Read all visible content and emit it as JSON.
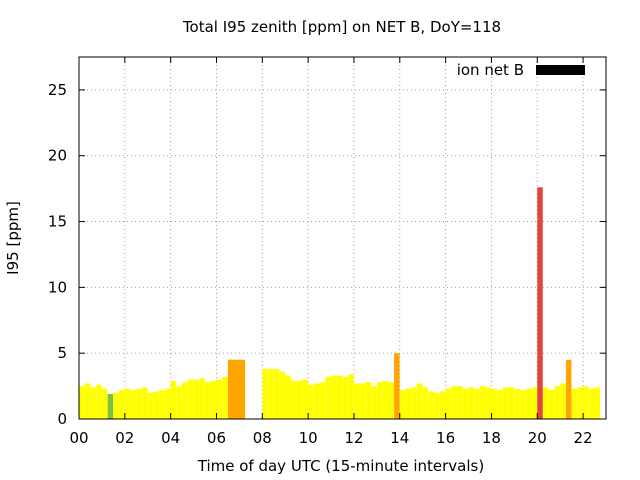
{
  "chart_data": {
    "type": "bar",
    "title": "Total I95 zenith [ppm] on NET B, DoY=118",
    "xlabel": "Time of day UTC (15-minute intervals)",
    "ylabel": "I95 [ppm]",
    "xlim": [
      0,
      23
    ],
    "ylim": [
      0,
      27.5
    ],
    "x_ticks": [
      0,
      2,
      4,
      6,
      8,
      10,
      12,
      14,
      16,
      18,
      20,
      22
    ],
    "x_tick_labels": [
      "00",
      "02",
      "04",
      "06",
      "08",
      "10",
      "12",
      "14",
      "16",
      "18",
      "20",
      "22"
    ],
    "y_ticks": [
      0,
      5,
      10,
      15,
      20,
      25
    ],
    "y_tick_labels": [
      "0",
      "5",
      "10",
      "15",
      "20",
      "25"
    ],
    "grid": true,
    "legend": {
      "label": "ion net B",
      "color": "#000000",
      "placement": "top-right"
    },
    "colors": {
      "low": "#ffff00",
      "green": "#80c040",
      "orange": "#ffa500",
      "red": "#e0463c"
    },
    "series": [
      {
        "name": "ion net B",
        "bar_width_hours": 0.25,
        "start_hours": [
          0.0,
          0.25,
          0.5,
          0.75,
          1.0,
          1.25,
          1.5,
          1.75,
          2.0,
          2.25,
          2.5,
          2.75,
          3.0,
          3.25,
          3.5,
          3.75,
          4.0,
          4.25,
          4.5,
          4.75,
          5.0,
          5.25,
          5.5,
          5.75,
          6.0,
          6.25,
          6.5,
          7.75,
          8.0,
          8.25,
          8.5,
          8.75,
          9.0,
          9.25,
          9.5,
          9.75,
          10.0,
          10.25,
          10.5,
          10.75,
          11.0,
          11.25,
          11.5,
          11.75,
          12.0,
          12.25,
          12.5,
          12.75,
          13.0,
          13.25,
          13.5,
          13.75,
          14.0,
          14.25,
          14.5,
          14.75,
          15.0,
          15.25,
          15.5,
          15.75,
          16.0,
          16.25,
          16.5,
          16.75,
          17.0,
          17.25,
          17.5,
          17.75,
          18.0,
          18.25,
          18.5,
          18.75,
          19.0,
          19.25,
          19.5,
          19.75,
          20.0,
          20.25,
          20.5,
          20.75,
          21.0,
          21.25,
          21.5,
          21.75,
          22.0,
          22.25,
          22.5
        ],
        "values": [
          2.5,
          2.7,
          2.4,
          2.6,
          2.3,
          1.9,
          2.0,
          2.2,
          2.3,
          2.2,
          2.3,
          2.4,
          2.0,
          2.1,
          2.2,
          2.3,
          2.9,
          2.5,
          2.8,
          3.0,
          3.0,
          3.1,
          2.8,
          2.9,
          3.0,
          3.2,
          4.5,
          0.0,
          3.8,
          3.8,
          3.8,
          3.6,
          3.3,
          2.9,
          2.9,
          3.0,
          2.6,
          2.7,
          2.8,
          3.2,
          3.3,
          3.3,
          3.2,
          3.4,
          2.7,
          2.7,
          2.8,
          2.5,
          2.8,
          2.9,
          2.8,
          5.0,
          2.2,
          2.3,
          2.4,
          2.7,
          2.4,
          2.1,
          2.0,
          2.1,
          2.3,
          2.5,
          2.5,
          2.3,
          2.4,
          2.3,
          2.5,
          2.4,
          2.3,
          2.2,
          2.4,
          2.4,
          2.3,
          2.2,
          2.3,
          2.4,
          17.6,
          2.4,
          2.2,
          2.5,
          2.7,
          4.5,
          2.3,
          2.4,
          2.5,
          2.3,
          2.4
        ],
        "colors": [
          "#ffff00",
          "#ffff00",
          "#ffff00",
          "#ffff00",
          "#ffff00",
          "#80c040",
          "#ffff00",
          "#ffff00",
          "#ffff00",
          "#ffff00",
          "#ffff00",
          "#ffff00",
          "#ffff00",
          "#ffff00",
          "#ffff00",
          "#ffff00",
          "#ffff00",
          "#ffff00",
          "#ffff00",
          "#ffff00",
          "#ffff00",
          "#ffff00",
          "#ffff00",
          "#ffff00",
          "#ffff00",
          "#ffff00",
          "#ffa500",
          "#ffff00",
          "#ffff00",
          "#ffff00",
          "#ffff00",
          "#ffff00",
          "#ffff00",
          "#ffff00",
          "#ffff00",
          "#ffff00",
          "#ffff00",
          "#ffff00",
          "#ffff00",
          "#ffff00",
          "#ffff00",
          "#ffff00",
          "#ffff00",
          "#ffff00",
          "#ffff00",
          "#ffff00",
          "#ffff00",
          "#ffff00",
          "#ffff00",
          "#ffff00",
          "#ffff00",
          "#ffa500",
          "#ffff00",
          "#ffff00",
          "#ffff00",
          "#ffff00",
          "#ffff00",
          "#ffff00",
          "#ffff00",
          "#ffff00",
          "#ffff00",
          "#ffff00",
          "#ffff00",
          "#ffff00",
          "#ffff00",
          "#ffff00",
          "#ffff00",
          "#ffff00",
          "#ffff00",
          "#ffff00",
          "#ffff00",
          "#ffff00",
          "#ffff00",
          "#ffff00",
          "#ffff00",
          "#ffff00",
          "#e0463c",
          "#ffff00",
          "#ffff00",
          "#ffff00",
          "#ffff00",
          "#ffa500",
          "#ffff00",
          "#ffff00",
          "#ffff00",
          "#ffff00",
          "#ffff00"
        ],
        "wide_bars": [
          {
            "start_hour": 6.5,
            "end_hour": 7.25,
            "value": 4.5,
            "color": "#ffa500"
          }
        ]
      }
    ]
  }
}
